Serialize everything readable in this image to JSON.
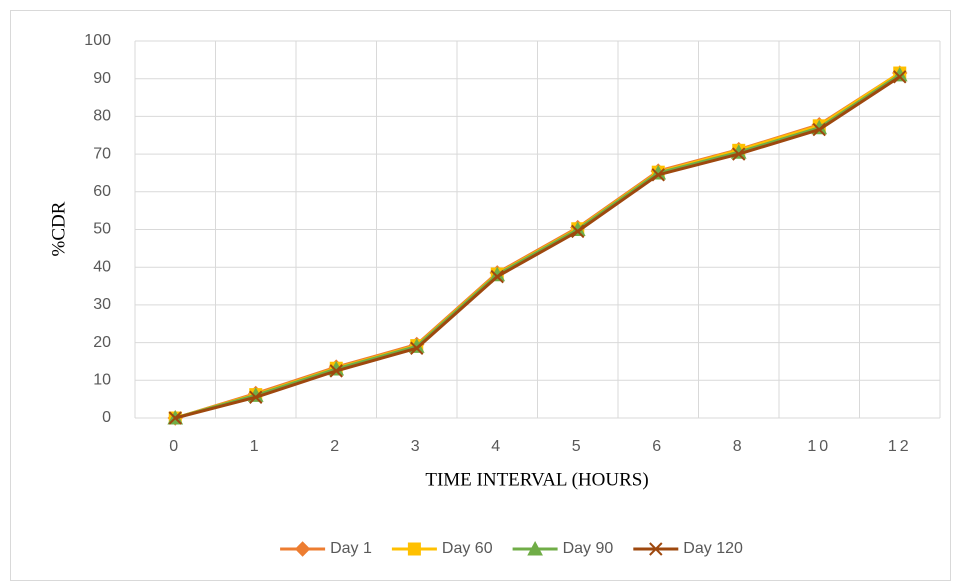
{
  "chart_data": {
    "type": "line",
    "y_label": "%CDR",
    "x_label": "TIME INTERVAL (HOURS)",
    "categories": [
      "0",
      "1",
      "2",
      "3",
      "4",
      "5",
      "6",
      "8",
      "10",
      "12"
    ],
    "series": [
      {
        "name": "Day 1",
        "color": "#ed7d31",
        "marker": "diamond",
        "values": [
          0,
          6.5,
          13.5,
          19.5,
          38.5,
          50.5,
          65.5,
          71.2,
          77.8,
          91.5
        ]
      },
      {
        "name": "Day 60",
        "color": "#ffc000",
        "marker": "square",
        "values": [
          0,
          6.2,
          13.2,
          19.2,
          38.2,
          50.2,
          65.2,
          71,
          77.5,
          91.5
        ]
      },
      {
        "name": "Day 90",
        "color": "#70ad47",
        "marker": "triangle",
        "values": [
          0,
          6,
          13,
          19,
          38,
          50,
          65,
          70.5,
          77,
          91
        ]
      },
      {
        "name": "Day 120",
        "color": "#9e480e",
        "marker": "x",
        "values": [
          0,
          5.5,
          12.5,
          18.5,
          37.5,
          49.5,
          64.5,
          70,
          76.5,
          90.5
        ]
      }
    ],
    "ylim": [
      0,
      100
    ],
    "yticks": [
      0,
      10,
      20,
      30,
      40,
      50,
      60,
      70,
      80,
      90,
      100
    ],
    "grid": true,
    "legend": "bottom"
  }
}
